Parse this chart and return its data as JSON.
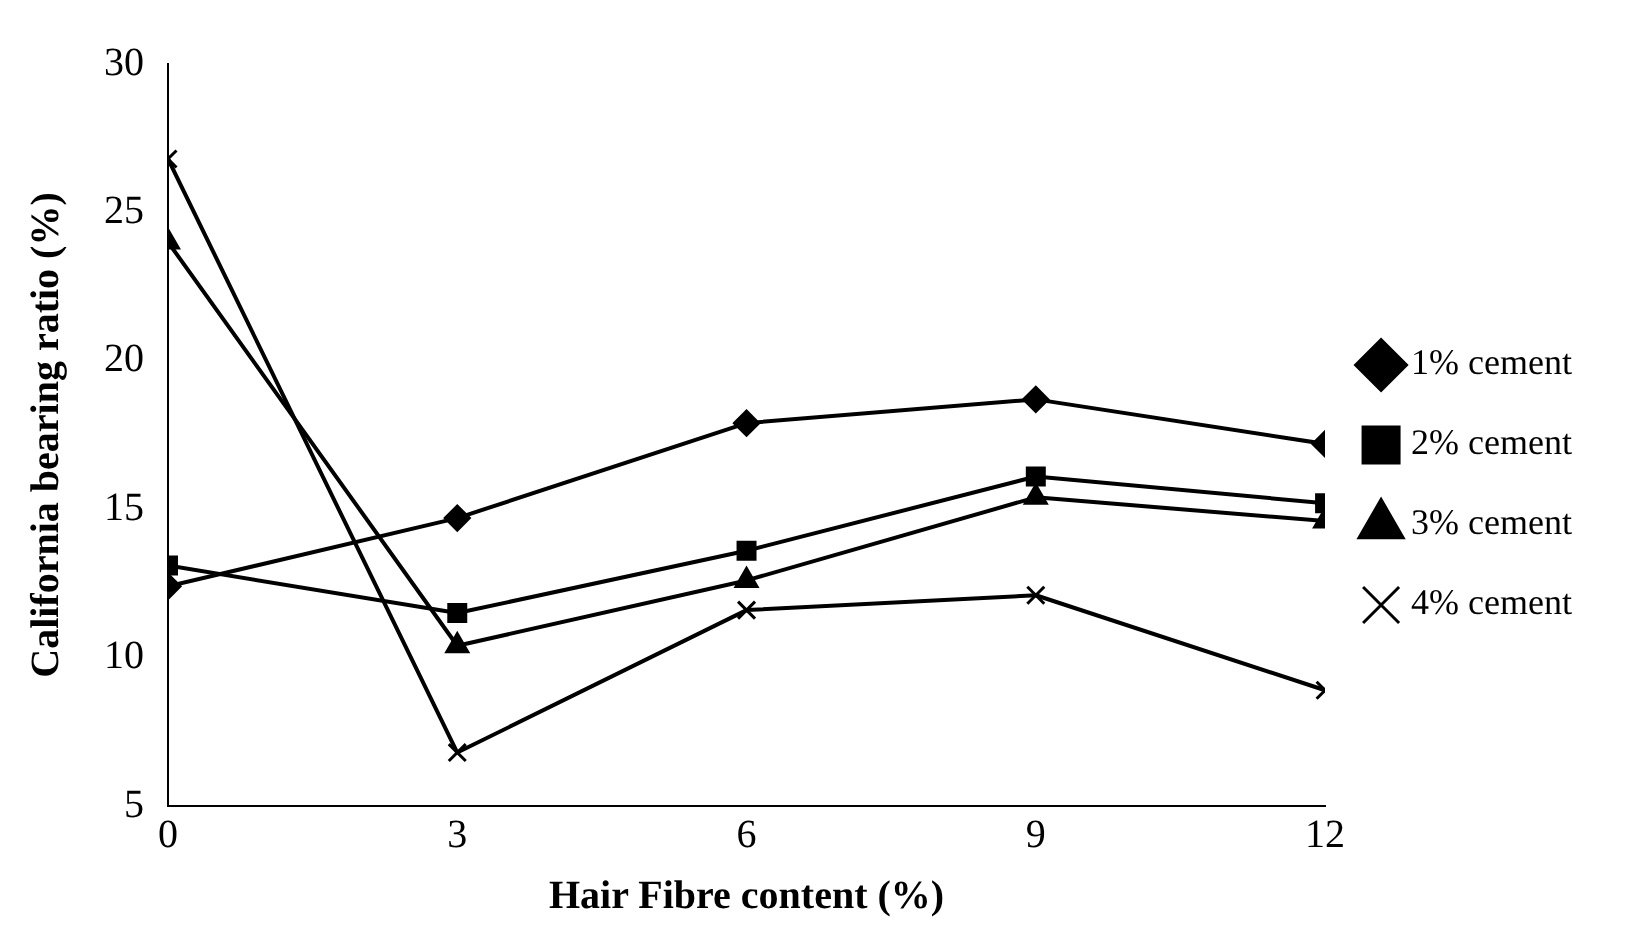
{
  "chart_data": {
    "type": "line",
    "xlabel": "Hair Fibre content (%)",
    "ylabel": "California bearing ratio (%)",
    "x": [
      0,
      3,
      6,
      9,
      12
    ],
    "xlim": [
      0,
      12
    ],
    "xticks": [
      0,
      3,
      6,
      9,
      12
    ],
    "ylim": [
      5,
      30
    ],
    "yticks": [
      5,
      10,
      15,
      20,
      25,
      30
    ],
    "grid": false,
    "legend": "right",
    "line_style": "solid",
    "series": [
      {
        "name": "1% cement",
        "color": "#000000",
        "marker": "diamond",
        "values": [
          12.4,
          14.7,
          17.9,
          18.7,
          17.2
        ]
      },
      {
        "name": "2% cement",
        "color": "#000000",
        "marker": "square",
        "values": [
          13.1,
          11.5,
          13.6,
          16.1,
          15.2
        ]
      },
      {
        "name": "3% cement",
        "color": "#000000",
        "marker": "triangle",
        "values": [
          24.0,
          10.4,
          12.6,
          15.4,
          14.6
        ]
      },
      {
        "name": "4% cement",
        "color": "#000000",
        "marker": "cross",
        "values": [
          26.8,
          6.8,
          11.6,
          12.1,
          8.9
        ]
      }
    ]
  }
}
